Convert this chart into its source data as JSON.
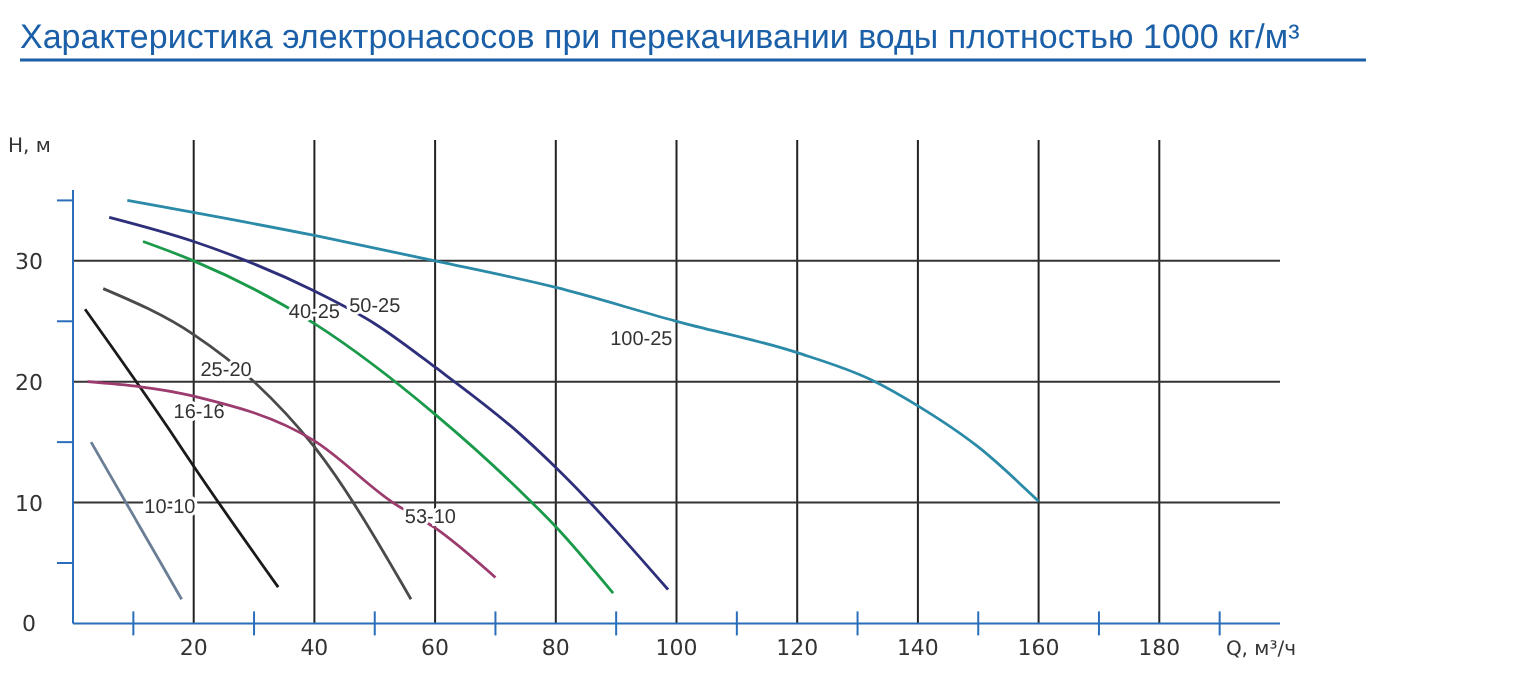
{
  "chart_data": {
    "type": "line",
    "title": "Характеристика электронасосов при перекачивании воды плотностью 1000 кг/м³",
    "xlabel": "Q, м³/ч",
    "ylabel": "Н, м",
    "xlim": [
      0,
      200
    ],
    "ylim": [
      0,
      40
    ],
    "xticks": [
      {
        "value": 10,
        "label": null
      },
      20,
      {
        "value": 30,
        "label": null
      },
      40,
      {
        "value": 50,
        "label": null
      },
      60,
      {
        "value": 70,
        "label": null
      },
      80,
      {
        "value": 90,
        "label": null
      },
      100,
      {
        "value": 110,
        "label": null
      },
      120,
      {
        "value": 130,
        "label": null
      },
      140,
      {
        "value": 150,
        "label": null
      },
      160,
      {
        "value": 170,
        "label": null
      },
      180,
      {
        "value": 190,
        "label": null
      }
    ],
    "yticks": [
      0,
      {
        "value": 5,
        "label": null
      },
      10,
      {
        "value": 15,
        "label": null
      },
      20,
      {
        "value": 25,
        "label": null
      },
      30,
      {
        "value": 35,
        "label": null
      }
    ],
    "grid": true,
    "marker": "none",
    "line_style": "solid",
    "series": [
      {
        "name": "10-10",
        "color": "#6a7f95",
        "x": [
          3,
          10.5,
          18
        ],
        "values": [
          15,
          8.5,
          2
        ]
      },
      {
        "name": "16-16",
        "color": "#1a1a1a",
        "x": [
          2,
          16,
          20,
          34
        ],
        "values": [
          26,
          16,
          13,
          3
        ]
      },
      {
        "name": "25-20",
        "color": "#4a4a4a",
        "x": [
          5,
          20,
          30,
          40,
          56
        ],
        "values": [
          27.7,
          23.9,
          20,
          14.6,
          2
        ]
      },
      {
        "name": "53-10",
        "color": "#9c3b6e",
        "x": [
          2.4,
          20,
          40,
          53,
          60,
          70
        ],
        "values": [
          20,
          18.8,
          15.1,
          10,
          7.9,
          3.8
        ]
      },
      {
        "name": "40-25",
        "color": "#1a9a4a",
        "x": [
          11.6,
          20,
          40,
          60,
          74,
          80,
          89.5
        ],
        "values": [
          31.6,
          30,
          24.8,
          17.3,
          11,
          8,
          2.5
        ]
      },
      {
        "name": "50-25",
        "color": "#2e2f7a",
        "x": [
          6,
          20,
          40,
          50,
          60,
          74,
          80,
          98.6
        ],
        "values": [
          33.6,
          31.6,
          27.5,
          24.8,
          21.2,
          15.7,
          12.9,
          2.8
        ]
      },
      {
        "name": "100-25",
        "color": "#2a8aa8",
        "x": [
          9,
          40,
          60,
          80,
          100,
          120,
          132.5,
          140,
          150,
          160
        ],
        "values": [
          35,
          32.1,
          30,
          27.8,
          25,
          22.4,
          20.1,
          18,
          14.6,
          10.1
        ]
      }
    ]
  }
}
